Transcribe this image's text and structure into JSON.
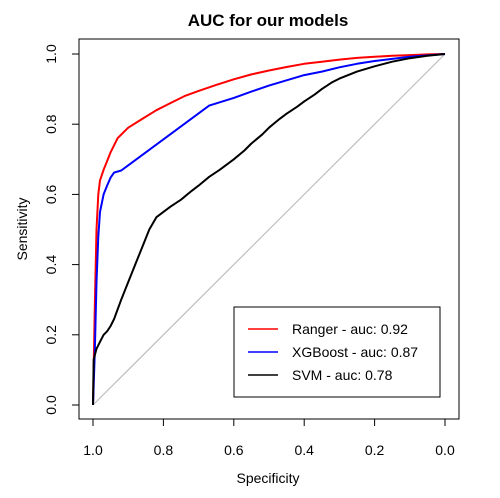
{
  "chart_data": {
    "type": "line",
    "title": "AUC for our models",
    "xlabel": "Specificity",
    "ylabel": "Sensitivity",
    "xlim": [
      1.0,
      0.0
    ],
    "ylim": [
      0.0,
      1.0
    ],
    "x_ticks": [
      "1.0",
      "0.8",
      "0.6",
      "0.4",
      "0.2",
      "0.0"
    ],
    "x_tick_values": [
      1.0,
      0.8,
      0.6,
      0.4,
      0.2,
      0.0
    ],
    "y_ticks": [
      "0.0",
      "0.2",
      "0.4",
      "0.6",
      "0.8",
      "1.0"
    ],
    "y_tick_values": [
      0.0,
      0.2,
      0.4,
      0.6,
      0.8,
      1.0
    ],
    "x_reversed": true,
    "grid": false,
    "legend_position": "bottom-right",
    "reference_line": {
      "from": [
        1.0,
        0.0
      ],
      "to": [
        0.0,
        1.0
      ],
      "color": "#bebebe"
    },
    "series": [
      {
        "name": "Ranger - auc: 0.92",
        "color": "#ff0000",
        "x": [
          1.0,
          0.995,
          0.99,
          0.985,
          0.98,
          0.97,
          0.96,
          0.95,
          0.93,
          0.9,
          0.86,
          0.82,
          0.78,
          0.74,
          0.7,
          0.65,
          0.6,
          0.55,
          0.5,
          0.45,
          0.4,
          0.35,
          0.3,
          0.25,
          0.2,
          0.15,
          0.1,
          0.05,
          0.0
        ],
        "y": [
          0.0,
          0.28,
          0.5,
          0.6,
          0.64,
          0.67,
          0.695,
          0.72,
          0.76,
          0.79,
          0.815,
          0.84,
          0.86,
          0.88,
          0.895,
          0.912,
          0.928,
          0.942,
          0.953,
          0.963,
          0.972,
          0.978,
          0.984,
          0.989,
          0.992,
          0.995,
          0.997,
          0.999,
          1.0
        ]
      },
      {
        "name": "XGBoost - auc: 0.87",
        "color": "#0000ff",
        "x": [
          1.0,
          0.995,
          0.99,
          0.985,
          0.98,
          0.97,
          0.96,
          0.95,
          0.94,
          0.92,
          0.67,
          0.6,
          0.55,
          0.5,
          0.45,
          0.4,
          0.35,
          0.3,
          0.25,
          0.2,
          0.15,
          0.1,
          0.05,
          0.0
        ],
        "y": [
          0.0,
          0.15,
          0.35,
          0.48,
          0.55,
          0.6,
          0.625,
          0.648,
          0.662,
          0.668,
          0.853,
          0.875,
          0.893,
          0.91,
          0.925,
          0.94,
          0.95,
          0.962,
          0.972,
          0.98,
          0.986,
          0.992,
          0.996,
          1.0
        ]
      },
      {
        "name": "SVM - auc: 0.78",
        "color": "#000000",
        "x": [
          1.0,
          0.998,
          0.99,
          0.98,
          0.97,
          0.96,
          0.95,
          0.94,
          0.92,
          0.9,
          0.88,
          0.86,
          0.84,
          0.82,
          0.8,
          0.78,
          0.75,
          0.72,
          0.7,
          0.67,
          0.64,
          0.6,
          0.57,
          0.55,
          0.52,
          0.5,
          0.47,
          0.45,
          0.42,
          0.4,
          0.37,
          0.35,
          0.32,
          0.3,
          0.25,
          0.2,
          0.15,
          0.1,
          0.05,
          0.0
        ],
        "y": [
          0.0,
          0.13,
          0.16,
          0.18,
          0.2,
          0.21,
          0.225,
          0.245,
          0.3,
          0.35,
          0.4,
          0.45,
          0.5,
          0.535,
          0.55,
          0.565,
          0.585,
          0.61,
          0.625,
          0.65,
          0.67,
          0.7,
          0.725,
          0.745,
          0.77,
          0.79,
          0.815,
          0.83,
          0.85,
          0.865,
          0.885,
          0.9,
          0.92,
          0.93,
          0.95,
          0.965,
          0.978,
          0.988,
          0.995,
          1.0
        ]
      }
    ]
  }
}
